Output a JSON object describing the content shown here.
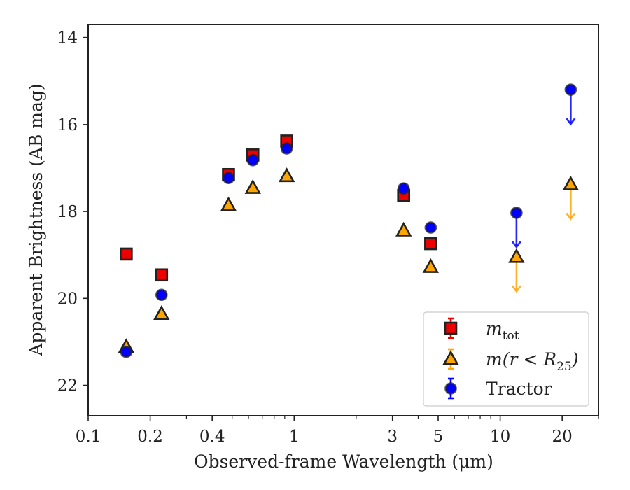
{
  "chart_data": {
    "type": "scatter",
    "xlabel": "Observed-frame Wavelength (μm)",
    "ylabel": "Apparent Brightness (AB mag)",
    "x_scale": "log",
    "xlim": [
      0.1,
      30
    ],
    "ylim": [
      22.7,
      13.7
    ],
    "x_ticks": [
      {
        "value": 0.1,
        "label": "0.1"
      },
      {
        "value": 0.2,
        "label": "0.2"
      },
      {
        "value": 0.4,
        "label": "0.4"
      },
      {
        "value": 1,
        "label": "1"
      },
      {
        "value": 3,
        "label": "3"
      },
      {
        "value": 5,
        "label": "5"
      },
      {
        "value": 10,
        "label": "10"
      },
      {
        "value": 20,
        "label": "20"
      }
    ],
    "y_ticks": [
      {
        "value": 14,
        "label": "14"
      },
      {
        "value": 16,
        "label": "16"
      },
      {
        "value": 18,
        "label": "18"
      },
      {
        "value": 20,
        "label": "20"
      },
      {
        "value": 22,
        "label": "22"
      }
    ],
    "legend_position": "lower-right",
    "series": [
      {
        "name": "m_tot",
        "marker": "square",
        "color": "#ee0000",
        "points": [
          {
            "x": 0.153,
            "y": 18.98
          },
          {
            "x": 0.227,
            "y": 19.46
          },
          {
            "x": 0.48,
            "y": 17.15
          },
          {
            "x": 0.63,
            "y": 16.7
          },
          {
            "x": 0.92,
            "y": 16.38
          },
          {
            "x": 3.4,
            "y": 17.63
          },
          {
            "x": 4.6,
            "y": 18.74
          }
        ]
      },
      {
        "name": "m(r < R25)",
        "marker": "triangle",
        "color": "#ffa500",
        "points": [
          {
            "x": 0.153,
            "y": 21.12
          },
          {
            "x": 0.227,
            "y": 20.36
          },
          {
            "x": 0.48,
            "y": 17.86
          },
          {
            "x": 0.63,
            "y": 17.46
          },
          {
            "x": 0.92,
            "y": 17.19
          },
          {
            "x": 3.4,
            "y": 18.44
          },
          {
            "x": 4.6,
            "y": 19.28
          },
          {
            "x": 12,
            "y": 19.05,
            "upper_limit": true
          },
          {
            "x": 22,
            "y": 17.38,
            "upper_limit": true
          }
        ]
      },
      {
        "name": "Tractor",
        "marker": "circle",
        "color": "#0000ff",
        "points": [
          {
            "x": 0.153,
            "y": 21.23
          },
          {
            "x": 0.227,
            "y": 19.92
          },
          {
            "x": 0.48,
            "y": 17.23
          },
          {
            "x": 0.63,
            "y": 16.82
          },
          {
            "x": 0.92,
            "y": 16.55
          },
          {
            "x": 3.4,
            "y": 17.47
          },
          {
            "x": 4.6,
            "y": 18.37
          },
          {
            "x": 12,
            "y": 18.03,
            "upper_limit": true
          },
          {
            "x": 22,
            "y": 15.2,
            "upper_limit": true
          }
        ]
      }
    ]
  },
  "legend": {
    "items": [
      {
        "base": "m",
        "sub": "tot",
        "rest": ""
      },
      {
        "base": "m(r < R",
        "sub": "25",
        "rest": ")"
      },
      {
        "base": "Tractor",
        "sub": "",
        "rest": ""
      }
    ]
  }
}
